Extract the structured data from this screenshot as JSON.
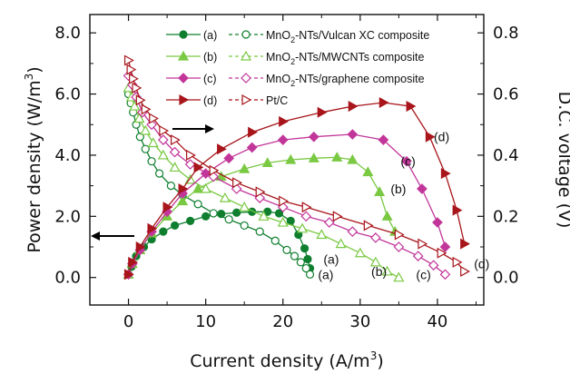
{
  "chart_data": {
    "type": "line",
    "xlabel": "Current density (A/m",
    "xlabel_sup": "3",
    "xlabel_end": ")",
    "ylabel_left": "Power density (W/m",
    "ylabel_left_sup": "3",
    "ylabel_left_end": ")",
    "ylabel_right": "D.C. voltage (V)",
    "xlim": [
      -5,
      46
    ],
    "ylim_left": [
      -0.9,
      8.6
    ],
    "ylim_right": [
      -0.09,
      0.86
    ],
    "x_ticks": [
      0,
      10,
      20,
      30,
      40
    ],
    "x_tick_labels": [
      "0",
      "10",
      "20",
      "30",
      "40"
    ],
    "y_left_ticks": [
      0.0,
      2.0,
      4.0,
      6.0,
      8.0
    ],
    "y_left_tick_labels": [
      "0.0",
      "2.0",
      "4.0",
      "6.0",
      "8.0"
    ],
    "y_right_ticks": [
      0.0,
      0.2,
      0.4,
      0.6,
      0.8
    ],
    "y_right_tick_labels": [
      "0.0",
      "0.2",
      "0.4",
      "0.6",
      "0.8"
    ],
    "legend": {
      "placement": "top-center",
      "entries": [
        {
          "left": "(a)",
          "right_pre": "MnO",
          "right_sub": "2",
          "right_post": "-NTs/Vulcan XC composite"
        },
        {
          "left": "(b)",
          "right_pre": "MnO",
          "right_sub": "2",
          "right_post": "-NTs/MWCNTs composite"
        },
        {
          "left": "(c)",
          "right_pre": "MnO",
          "right_sub": "2",
          "right_post": "-NTs/graphene composite"
        },
        {
          "left": "(d)",
          "right_pre": "",
          "right_sub": "",
          "right_post": "Pt/C"
        }
      ]
    },
    "series": [
      {
        "label": "(a)",
        "kind": "power",
        "axis": "left",
        "color": "#0f7f2f",
        "marker": "circle",
        "filled": true,
        "x": [
          0,
          0.4,
          1,
          2,
          3,
          4.5,
          6,
          8,
          10,
          12,
          14,
          16,
          18,
          19.5,
          21,
          22,
          22.8,
          23.2,
          23.5
        ],
        "y": [
          0.1,
          0.35,
          0.7,
          1.0,
          1.25,
          1.5,
          1.7,
          1.85,
          2.0,
          2.08,
          2.12,
          2.15,
          2.15,
          2.1,
          1.85,
          1.4,
          0.95,
          0.6,
          0.3
        ]
      },
      {
        "label": "(a)",
        "kind": "voltage",
        "axis": "right",
        "color": "#0f7f2f",
        "marker": "circle",
        "filled": false,
        "x": [
          0,
          0.3,
          0.6,
          1,
          1.5,
          2.2,
          3,
          4,
          5.5,
          7,
          9,
          11,
          13,
          15,
          17,
          19,
          20.5,
          21.5,
          22.3,
          23,
          23.5
        ],
        "y": [
          0.6,
          0.57,
          0.54,
          0.5,
          0.46,
          0.42,
          0.38,
          0.34,
          0.3,
          0.27,
          0.24,
          0.21,
          0.19,
          0.17,
          0.15,
          0.12,
          0.09,
          0.07,
          0.05,
          0.03,
          0.01
        ]
      },
      {
        "label": "(b)",
        "kind": "power",
        "axis": "left",
        "color": "#7ac943",
        "marker": "triangle",
        "filled": true,
        "x": [
          0,
          0.5,
          1.5,
          3,
          5,
          7,
          9,
          12,
          15,
          18,
          21,
          24,
          27,
          29,
          31,
          32.5,
          33.5,
          34.5
        ],
        "y": [
          0.1,
          0.45,
          0.9,
          1.45,
          2.0,
          2.5,
          2.9,
          3.3,
          3.55,
          3.75,
          3.85,
          3.9,
          3.93,
          3.85,
          3.45,
          2.8,
          2.0,
          1.5
        ]
      },
      {
        "label": "(b)",
        "kind": "voltage",
        "axis": "right",
        "color": "#7ac943",
        "marker": "triangle",
        "filled": false,
        "x": [
          0,
          0.4,
          0.8,
          1.4,
          2.2,
          3.2,
          4.5,
          6,
          8,
          10,
          12.5,
          15,
          17.5,
          20,
          22.5,
          25,
          27.5,
          30,
          32,
          33.5,
          35
        ],
        "y": [
          0.62,
          0.59,
          0.56,
          0.52,
          0.48,
          0.44,
          0.4,
          0.36,
          0.32,
          0.29,
          0.26,
          0.23,
          0.2,
          0.18,
          0.16,
          0.14,
          0.11,
          0.08,
          0.05,
          0.02,
          0.0
        ]
      },
      {
        "label": "(c)",
        "kind": "power",
        "axis": "left",
        "color": "#c2369a",
        "marker": "diamond",
        "filled": true,
        "x": [
          0,
          0.5,
          1.5,
          3,
          5,
          7,
          10,
          13,
          16,
          20,
          24,
          29,
          33,
          36,
          38,
          40,
          41
        ],
        "y": [
          0.1,
          0.45,
          0.9,
          1.5,
          2.15,
          2.75,
          3.4,
          3.9,
          4.25,
          4.5,
          4.6,
          4.68,
          4.5,
          3.8,
          2.9,
          1.8,
          1.0
        ]
      },
      {
        "label": "(c)",
        "kind": "voltage",
        "axis": "right",
        "color": "#c2369a",
        "marker": "diamond",
        "filled": false,
        "x": [
          0,
          0.5,
          1,
          1.8,
          3,
          4.5,
          6,
          8,
          11,
          14,
          17,
          20,
          23,
          26,
          29,
          32,
          35,
          37.5,
          39.5,
          41
        ],
        "y": [
          0.66,
          0.63,
          0.59,
          0.54,
          0.5,
          0.45,
          0.41,
          0.37,
          0.33,
          0.29,
          0.26,
          0.23,
          0.2,
          0.18,
          0.15,
          0.13,
          0.1,
          0.07,
          0.04,
          0.01
        ]
      },
      {
        "label": "(d)",
        "kind": "power",
        "axis": "left",
        "color": "#a8151b",
        "marker": "triangle-right",
        "filled": true,
        "x": [
          0,
          0.5,
          1.5,
          3,
          5,
          7,
          9,
          12,
          16,
          20,
          25,
          29,
          33,
          36.5,
          39,
          41,
          42.5,
          43.5
        ],
        "y": [
          0.1,
          0.5,
          1.0,
          1.6,
          2.3,
          2.9,
          3.6,
          4.2,
          4.75,
          5.1,
          5.4,
          5.6,
          5.72,
          5.6,
          4.6,
          3.4,
          2.2,
          1.1
        ]
      },
      {
        "label": "(d)",
        "kind": "voltage",
        "axis": "right",
        "color": "#a8151b",
        "marker": "triangle-right",
        "filled": false,
        "x": [
          0,
          0.3,
          0.6,
          1,
          1.5,
          2.2,
          3.2,
          4.5,
          6,
          8,
          11,
          14,
          17,
          20,
          23,
          27,
          31,
          35,
          38,
          40.5,
          42.5,
          43.5
        ],
        "y": [
          0.71,
          0.68,
          0.65,
          0.62,
          0.58,
          0.55,
          0.52,
          0.48,
          0.45,
          0.4,
          0.35,
          0.31,
          0.28,
          0.25,
          0.23,
          0.2,
          0.17,
          0.14,
          0.11,
          0.08,
          0.05,
          0.02
        ]
      }
    ],
    "annotations": {
      "power_right": [
        {
          "text": "(d)",
          "x": 38.6,
          "y": 4.6
        },
        {
          "text": "(c)",
          "x": 34.3,
          "y": 3.8
        },
        {
          "text": "(b)",
          "x": 33.0,
          "y": 2.9
        },
        {
          "text": "(a)",
          "x": 24.3,
          "y": 0.6
        }
      ],
      "voltage_bottom": [
        {
          "text": "(a)",
          "x": 24.3,
          "y": 0.01
        },
        {
          "text": "(b)",
          "x": 31.2,
          "y": 0.02
        },
        {
          "text": "(c)",
          "x": 37.0,
          "y": 0.01
        },
        {
          "text": "(d)",
          "x": 44.5,
          "y": 0.045
        }
      ]
    },
    "grid": false
  }
}
